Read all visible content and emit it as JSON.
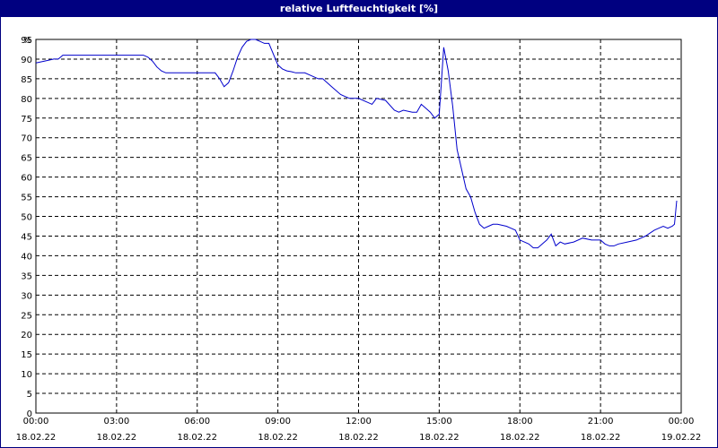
{
  "title": "relative Luftfeuchtigkeit [%]",
  "chart_data": {
    "type": "line",
    "title": "relative Luftfeuchtigkeit [%]",
    "ylabel": "%",
    "xlabel": "",
    "ylim": [
      0,
      95
    ],
    "yticks": [
      0,
      5,
      10,
      15,
      20,
      25,
      30,
      35,
      40,
      45,
      50,
      55,
      60,
      65,
      70,
      75,
      80,
      85,
      90,
      95
    ],
    "grid": true,
    "legend": "none",
    "x_ticks": [
      {
        "time": "00:00",
        "date": "18.02.22"
      },
      {
        "time": "03:00",
        "date": "18.02.22"
      },
      {
        "time": "06:00",
        "date": "18.02.22"
      },
      {
        "time": "09:00",
        "date": "18.02.22"
      },
      {
        "time": "12:00",
        "date": "18.02.22"
      },
      {
        "time": "15:00",
        "date": "18.02.22"
      },
      {
        "time": "18:00",
        "date": "18.02.22"
      },
      {
        "time": "21:00",
        "date": "18.02.22"
      },
      {
        "time": "00:00",
        "date": "19.02.22"
      }
    ],
    "series": [
      {
        "color": "#0000cc",
        "x": [
          "00:00",
          "00:20",
          "00:40",
          "00:50",
          "01:00",
          "02:00",
          "03:00",
          "04:00",
          "04:10",
          "04:20",
          "04:30",
          "04:40",
          "04:50",
          "05:00",
          "06:00",
          "06:40",
          "06:50",
          "07:00",
          "07:10",
          "07:20",
          "07:30",
          "07:40",
          "07:50",
          "08:00",
          "08:10",
          "08:20",
          "08:30",
          "08:40",
          "09:00",
          "09:10",
          "09:20",
          "09:30",
          "09:40",
          "10:00",
          "10:30",
          "10:40",
          "11:00",
          "11:20",
          "11:40",
          "12:00",
          "12:20",
          "12:30",
          "12:40",
          "13:00",
          "13:20",
          "13:30",
          "13:40",
          "14:00",
          "14:10",
          "14:20",
          "14:30",
          "14:40",
          "14:50",
          "15:00",
          "15:10",
          "15:20",
          "15:30",
          "15:40",
          "15:50",
          "16:00",
          "16:10",
          "16:20",
          "16:30",
          "16:40",
          "16:50",
          "17:00",
          "17:10",
          "17:30",
          "17:40",
          "17:50",
          "18:00",
          "18:10",
          "18:20",
          "18:30",
          "18:40",
          "18:50",
          "19:00",
          "19:10",
          "19:20",
          "19:30",
          "19:40",
          "20:00",
          "20:20",
          "20:40",
          "21:00",
          "21:10",
          "21:20",
          "21:30",
          "21:40",
          "22:00",
          "22:20",
          "22:40",
          "23:00",
          "23:10",
          "23:20",
          "23:30",
          "23:40",
          "23:45",
          "23:50"
        ],
        "y": [
          89,
          89.5,
          90,
          90,
          91,
          91,
          91,
          91,
          90.5,
          89.5,
          88,
          87,
          86.5,
          86.5,
          86.5,
          86.5,
          85,
          83,
          84,
          87,
          90.5,
          93,
          94.5,
          95,
          95,
          94.5,
          94,
          94,
          88.5,
          87.5,
          87,
          86.8,
          86.5,
          86.5,
          85,
          85,
          83,
          81,
          80,
          80,
          79,
          78.5,
          80,
          79.5,
          77,
          76.5,
          77,
          76.5,
          76.5,
          78.5,
          77.5,
          76.5,
          75,
          76,
          93,
          87,
          78,
          67,
          62,
          57,
          55,
          51,
          48,
          47,
          47.5,
          48,
          48,
          47.5,
          47,
          46.5,
          44,
          43.5,
          43,
          42,
          42,
          43,
          44,
          45.5,
          42.5,
          43.5,
          43,
          43.5,
          44.5,
          44,
          44,
          43,
          42.5,
          42.5,
          43,
          43.5,
          44,
          45,
          46.5,
          47,
          47.5,
          47,
          47.5,
          48,
          54
        ]
      }
    ]
  }
}
